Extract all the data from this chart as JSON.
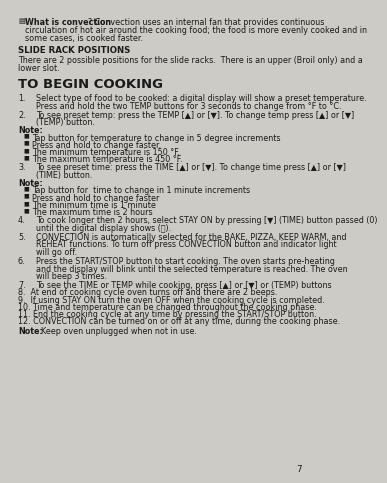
{
  "bg_color": "#cccbc5",
  "text_color": "#1a1a1a",
  "page_number": "7",
  "bullet_bold": "What is convection",
  "bullet_line1": "? Convection uses an internal fan that provides continuous",
  "bullet_line2": "circulation of hot air around the cooking food; the food is more evenly cooked and in",
  "bullet_line3": "some cases, is cooked faster.",
  "section1_title": "SLIDE RACK POSITIONS",
  "section1_line1": "There are 2 possible positions for the slide racks.  There is an upper (Broil only) and a",
  "section1_line2": "lower slot.",
  "section2_title": "TO BEGIN COOKING",
  "note1_label": "Note:",
  "note1_bullets": [
    "Tap button for temperature to change in 5 degree increments",
    "Press and hold to change faster.",
    "The minimum temperature is 150 °F.",
    "The maximum temperature is 450 °F."
  ],
  "note2_label": "Note:",
  "note2_bullets": [
    "Tap button for  time to change in 1 minute increments",
    "Press and hold to change faster",
    "The minimum time is 1 minute",
    "The maximum time is 2 hours"
  ],
  "final_note": "Note:",
  "final_note_rest": "  Keep oven unplugged when not in use."
}
